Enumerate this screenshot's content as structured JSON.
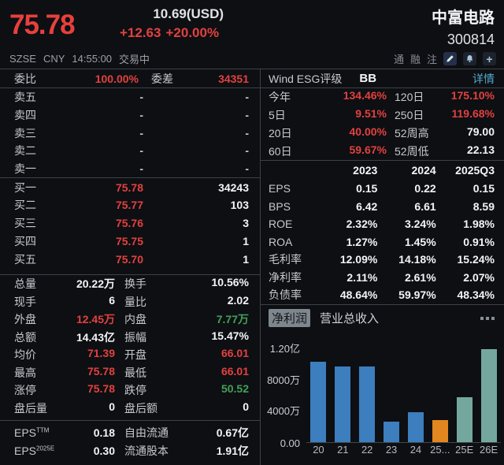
{
  "header": {
    "price": "75.78",
    "usd_price": "10.69(USD)",
    "change": "+12.63",
    "change_pct": "+20.00%",
    "stock_name": "中富电路",
    "stock_code": "300814",
    "exchange": "SZSE",
    "currency": "CNY",
    "time": "14:55:00",
    "status": "交易中",
    "badges": [
      "通",
      "融",
      "注"
    ],
    "icons": [
      "edit-pencil-icon",
      "alert-bell-icon",
      "add-plus-icon"
    ]
  },
  "order_book": {
    "weibi_label": "委比",
    "weibi_value": "100.00%",
    "weicha_label": "委差",
    "weicha_value": "34351",
    "sell_rows": [
      {
        "label": "卖五",
        "price": "-",
        "qty": "-"
      },
      {
        "label": "卖四",
        "price": "-",
        "qty": "-"
      },
      {
        "label": "卖三",
        "price": "-",
        "qty": "-"
      },
      {
        "label": "卖二",
        "price": "-",
        "qty": "-"
      },
      {
        "label": "卖一",
        "price": "-",
        "qty": "-"
      }
    ],
    "buy_rows": [
      {
        "label": "买一",
        "price": "75.78",
        "qty": "34243"
      },
      {
        "label": "买二",
        "price": "75.77",
        "qty": "103"
      },
      {
        "label": "买三",
        "price": "75.76",
        "qty": "3"
      },
      {
        "label": "买四",
        "price": "75.75",
        "qty": "1"
      },
      {
        "label": "买五",
        "price": "75.70",
        "qty": "1"
      }
    ]
  },
  "stats_rows": [
    [
      {
        "label": "总量",
        "value": "20.22万",
        "color": "white"
      },
      {
        "label": "换手",
        "value": "10.56%",
        "color": "white"
      }
    ],
    [
      {
        "label": "现手",
        "value": "6",
        "color": "white"
      },
      {
        "label": "量比",
        "value": "2.02",
        "color": "white"
      }
    ],
    [
      {
        "label": "外盘",
        "value": "12.45万",
        "color": "red"
      },
      {
        "label": "内盘",
        "value": "7.77万",
        "color": "green"
      }
    ],
    [
      {
        "label": "总额",
        "value": "14.43亿",
        "color": "white"
      },
      {
        "label": "振幅",
        "value": "15.47%",
        "color": "white"
      }
    ],
    [
      {
        "label": "均价",
        "value": "71.39",
        "color": "red"
      },
      {
        "label": "开盘",
        "value": "66.01",
        "color": "red"
      }
    ],
    [
      {
        "label": "最高",
        "value": "75.78",
        "color": "red"
      },
      {
        "label": "最低",
        "value": "66.01",
        "color": "red"
      }
    ],
    [
      {
        "label": "涨停",
        "value": "75.78",
        "color": "red"
      },
      {
        "label": "跌停",
        "value": "50.52",
        "color": "green"
      }
    ],
    [
      {
        "label": "盘后量",
        "value": "0",
        "color": "white"
      },
      {
        "label": "盘后额",
        "value": "0",
        "color": "white"
      }
    ]
  ],
  "eps_rows": [
    {
      "label": "EPS",
      "sup": "TTM",
      "value": "0.18",
      "label2": "自由流通",
      "value2": "0.67亿"
    },
    {
      "label": "EPS",
      "sup": "2025E",
      "value": "0.30",
      "label2": "流通股本",
      "value2": "1.91亿"
    }
  ],
  "esg": {
    "label": "Wind ESG评级",
    "rating": "BB",
    "link": "详情"
  },
  "performance_rows": [
    [
      {
        "label": "今年",
        "value": "134.46%",
        "color": "red"
      },
      {
        "label": "120日",
        "value": "175.10%",
        "color": "red"
      }
    ],
    [
      {
        "label": "5日",
        "value": "9.51%",
        "color": "red"
      },
      {
        "label": "250日",
        "value": "119.68%",
        "color": "red"
      }
    ],
    [
      {
        "label": "20日",
        "value": "40.00%",
        "color": "red"
      },
      {
        "label": "52周高",
        "value": "79.00",
        "color": "white"
      }
    ],
    [
      {
        "label": "60日",
        "value": "59.67%",
        "color": "red"
      },
      {
        "label": "52周低",
        "value": "22.13",
        "color": "white"
      }
    ]
  ],
  "financials": {
    "headers": [
      "2023",
      "2024",
      "2025Q3"
    ],
    "rows": [
      {
        "label": "EPS",
        "values": [
          "0.15",
          "0.22",
          "0.15"
        ]
      },
      {
        "label": "BPS",
        "values": [
          "6.42",
          "6.61",
          "8.59"
        ]
      },
      {
        "label": "ROE",
        "values": [
          "2.32%",
          "3.24%",
          "1.98%"
        ]
      },
      {
        "label": "ROA",
        "values": [
          "1.27%",
          "1.45%",
          "0.91%"
        ]
      },
      {
        "label": "毛利率",
        "values": [
          "12.09%",
          "14.18%",
          "15.24%"
        ]
      },
      {
        "label": "净利率",
        "values": [
          "2.11%",
          "2.61%",
          "2.07%"
        ]
      },
      {
        "label": "负债率",
        "values": [
          "48.64%",
          "59.97%",
          "48.34%"
        ]
      }
    ]
  },
  "chart_data": {
    "type": "bar",
    "title_tabs": [
      "净利润",
      "营业总收入"
    ],
    "selected_tab": "净利润",
    "categories": [
      "20",
      "21",
      "22",
      "23",
      "24",
      "25...",
      "25E",
      "26E"
    ],
    "values_wan": [
      10300,
      9700,
      9700,
      2600,
      3800,
      2800,
      5800,
      11900
    ],
    "unit": "万元",
    "ylim_wan": [
      0,
      13900
    ],
    "yticks": [
      {
        "label": "1.20亿",
        "wan": 12000
      },
      {
        "label": "8000万",
        "wan": 8000
      },
      {
        "label": "4000万",
        "wan": 4000
      },
      {
        "label": "0.00",
        "wan": 0
      }
    ],
    "bar_colors": [
      "#3d7ebe",
      "#3d7ebe",
      "#3d7ebe",
      "#3d7ebe",
      "#3d7ebe",
      "#e2871f",
      "#74a89f",
      "#74a89f"
    ],
    "legend_position": "none",
    "grid": false
  },
  "colors": {
    "up_red": "#e2413e",
    "down_green": "#43a058",
    "link_cyan": "#55a9cb",
    "bar_blue": "#3d7ebe",
    "bar_orange": "#e2871f",
    "bar_teal": "#74a89f",
    "background": "#0d0f13"
  }
}
